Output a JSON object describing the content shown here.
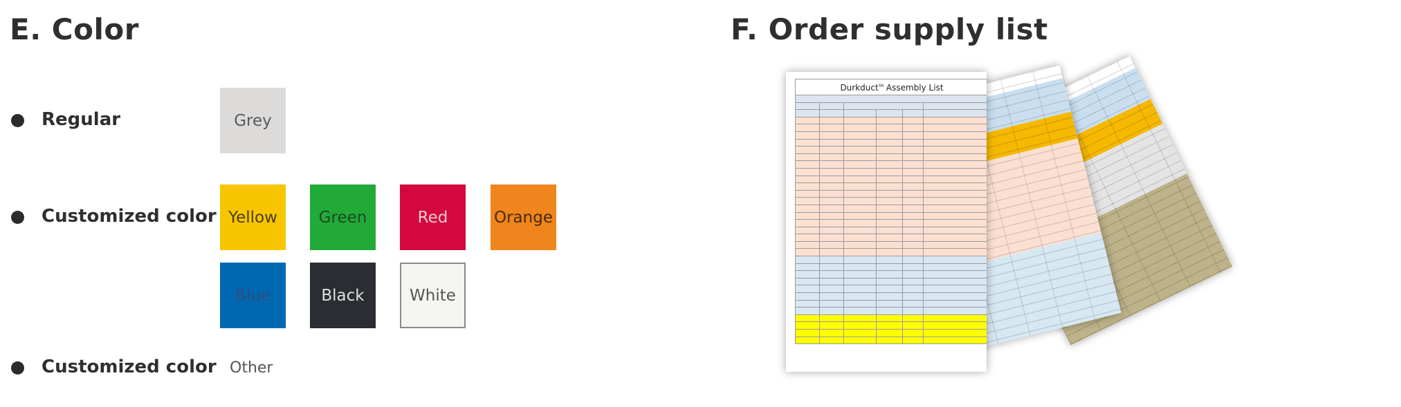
{
  "sections": {
    "color_title": "E. Color",
    "order_title": "F. Order supply list"
  },
  "color_rows": {
    "regular_label": "Regular",
    "custom_label_1": "Customized color",
    "custom_label_2": "Customized color",
    "other_text": "Other"
  },
  "swatches": [
    {
      "label": "Grey",
      "bg": "#dcdbda",
      "fg": "#5a5a5a"
    },
    {
      "label": "Yellow",
      "bg": "#f7c600",
      "fg": "#4a3d1a"
    },
    {
      "label": "Green",
      "bg": "#22aa38",
      "fg": "#1d4a23"
    },
    {
      "label": "Red",
      "bg": "#d3093d",
      "fg": "#f2c9d1"
    },
    {
      "label": "Orange",
      "bg": "#ef851c",
      "fg": "#4a2a0f"
    },
    {
      "label": "Blue",
      "bg": "#0068b3",
      "fg": "#2c4f7a"
    },
    {
      "label": "Black",
      "bg": "#2a2d31",
      "fg": "#e0e0e0"
    },
    {
      "label": "White",
      "bg": "#f5f5f2",
      "fg": "#555555"
    }
  ],
  "assembly_list": {
    "title_main": "Durkduct",
    "title_sup": "TM",
    "title_rest": "Assembly List"
  }
}
